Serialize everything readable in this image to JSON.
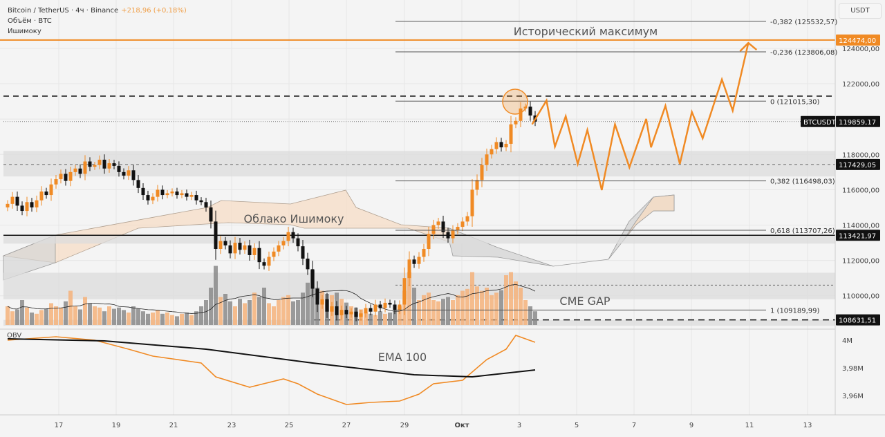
{
  "header": {
    "symbol": "Bitcoin / TetherUS · 4ч · Binance",
    "change": "+218,96 (+0,18%)",
    "volume_label": "Объём · BTC",
    "ichimoku_label": "Ишимоку"
  },
  "price_scale": {
    "unit": "USDT",
    "ticks": [
      "124000,00",
      "122000,00",
      "118000,00",
      "116000,00",
      "114000,00",
      "112000,00",
      "110000,00"
    ],
    "ath_tag": "124474,00",
    "symbol_tag": "BTCUSDT",
    "last_price_tag": "119859,17",
    "level_tags": [
      "117429,05",
      "113421,97",
      "108631,51"
    ]
  },
  "obv_scale": {
    "label": "OBV",
    "ticks": [
      "4M",
      "3,98M",
      "3,96M"
    ]
  },
  "time_axis": {
    "ticks": [
      "17",
      "19",
      "21",
      "23",
      "25",
      "27",
      "29",
      "Окт",
      "3",
      "5",
      "7",
      "9",
      "11",
      "13"
    ]
  },
  "annotations": {
    "ath": "Исторический максимум",
    "cloud": "Облако Ишимоку",
    "cme_gap": "CME GAP",
    "ema": "EMA 100"
  },
  "fib_levels": [
    {
      "label": "-0,382 (125532,57)",
      "price": 125532.57
    },
    {
      "label": "-0,236 (123806,08)",
      "price": 123806.08
    },
    {
      "label": "0 (121015,30)",
      "price": 121015.3
    },
    {
      "label": "0,382 (116498,03)",
      "price": 116498.03
    },
    {
      "label": "0,618 (113707,26)",
      "price": 113707.26
    },
    {
      "label": "1 (109189,99)",
      "price": 109189.99
    }
  ],
  "colors": {
    "accent": "#f08a24",
    "up": "#f08a24",
    "down": "#111111",
    "vol_up": "#f5b27a",
    "vol_down": "#8a8a8a",
    "zone": "#dcdcdc"
  },
  "chart_data": {
    "type": "candlestick",
    "interval": "4h",
    "start": "09-15 04:00",
    "closes": [
      115200,
      115600,
      115100,
      114800,
      115300,
      115000,
      115400,
      115900,
      115700,
      116300,
      116600,
      116900,
      116500,
      117000,
      117200,
      116900,
      117600,
      117300,
      117400,
      117700,
      117200,
      117500,
      117350,
      117000,
      116800,
      117100,
      116550,
      116100,
      115700,
      115400,
      115600,
      116000,
      115700,
      115800,
      115900,
      115700,
      115800,
      115600,
      115700,
      115400,
      115300,
      115000,
      114200,
      112650,
      113100,
      112850,
      112400,
      113000,
      112600,
      112850,
      112300,
      112700,
      111900,
      111700,
      112200,
      112500,
      112850,
      113100,
      113600,
      113250,
      112800,
      112100,
      111500,
      110400,
      109500,
      109800,
      109100,
      109400,
      108900,
      109200,
      108950,
      109100,
      108800,
      109000,
      109300,
      109100,
      109500,
      109300,
      109600,
      109500,
      109200,
      109500,
      111000,
      112050,
      111800,
      112200,
      112650,
      113500,
      114000,
      114200,
      113600,
      113250,
      113700,
      113900,
      114200,
      114500,
      116000,
      116550,
      117400,
      118000,
      118300,
      118700,
      118400,
      118600,
      119700,
      119900,
      120600,
      120700,
      120200,
      119860
    ],
    "volumes": [
      30,
      22,
      25,
      40,
      28,
      20,
      18,
      24,
      26,
      35,
      30,
      28,
      38,
      55,
      30,
      25,
      45,
      35,
      30,
      28,
      22,
      30,
      26,
      28,
      24,
      20,
      30,
      26,
      22,
      18,
      20,
      24,
      18,
      20,
      16,
      14,
      18,
      20,
      16,
      22,
      30,
      40,
      60,
      95,
      45,
      50,
      38,
      30,
      42,
      35,
      40,
      52,
      45,
      60,
      35,
      30,
      40,
      45,
      48,
      38,
      40,
      52,
      68,
      88,
      60,
      55,
      50,
      48,
      52,
      42,
      36,
      30,
      28,
      25,
      20,
      18,
      16,
      22,
      18,
      20,
      24,
      30,
      55,
      85,
      60,
      40,
      48,
      52,
      40,
      38,
      42,
      45,
      40,
      48,
      55,
      58,
      85,
      62,
      55,
      60,
      48,
      52,
      56,
      80,
      85,
      70,
      60,
      40,
      30,
      22
    ],
    "obv": {
      "index": [
        0,
        10,
        18,
        25,
        30,
        40,
        43,
        50,
        57,
        60,
        64,
        70,
        75,
        81,
        85,
        88,
        94,
        99,
        103,
        105,
        107,
        109
      ],
      "values_M": [
        4.0,
        4.0025,
        4.0,
        3.9935,
        3.9885,
        3.9835,
        3.9735,
        3.966,
        3.972,
        3.9685,
        3.961,
        3.9535,
        3.955,
        3.956,
        3.961,
        3.9685,
        3.971,
        3.986,
        3.9935,
        4.0035,
        4.001,
        3.9985
      ]
    },
    "ema100": {
      "index": [
        0,
        20,
        41,
        63,
        84,
        96,
        109
      ],
      "values_M": [
        4.001,
        3.9995,
        3.9935,
        3.9835,
        3.975,
        3.9735,
        3.9785
      ]
    },
    "projection": [
      {
        "t": "10-03 10:00",
        "p": 119700
      },
      {
        "t": "10-03 22:00",
        "p": 121050
      },
      {
        "t": "10-04 05:00",
        "p": 118440
      },
      {
        "t": "10-04 14:00",
        "p": 120160
      },
      {
        "t": "10-05 00:00",
        "p": 117460
      },
      {
        "t": "10-05 08:00",
        "p": 119380
      },
      {
        "t": "10-05 20:00",
        "p": 115980
      },
      {
        "t": "10-06 07:00",
        "p": 119700
      },
      {
        "t": "10-06 19:00",
        "p": 117270
      },
      {
        "t": "10-07 09:00",
        "p": 120010
      },
      {
        "t": "10-07 13:00",
        "p": 118400
      },
      {
        "t": "10-08 01:00",
        "p": 120750
      },
      {
        "t": "10-08 13:00",
        "p": 117460
      },
      {
        "t": "10-08 23:00",
        "p": 120400
      },
      {
        "t": "10-09 08:00",
        "p": 118910
      },
      {
        "t": "10-10 00:00",
        "p": 122240
      },
      {
        "t": "10-10 09:00",
        "p": 120480
      },
      {
        "t": "10-10 22:00",
        "p": 124310
      }
    ],
    "levels": {
      "ath": 124474,
      "last": 119859.17,
      "resistance_dashed": 121300,
      "zone_mid": 117429.05,
      "support_line": 113421.97,
      "gap_mid": 110600,
      "gap_bottom": 108631.51
    },
    "zones": [
      [
        116750,
        118200
      ],
      [
        112950,
        113420
      ],
      [
        109800,
        111300
      ],
      [
        108300,
        108631
      ]
    ],
    "ylim": [
      108000,
      126500
    ],
    "obv_ylim": [
      3.94,
      4.005
    ]
  }
}
